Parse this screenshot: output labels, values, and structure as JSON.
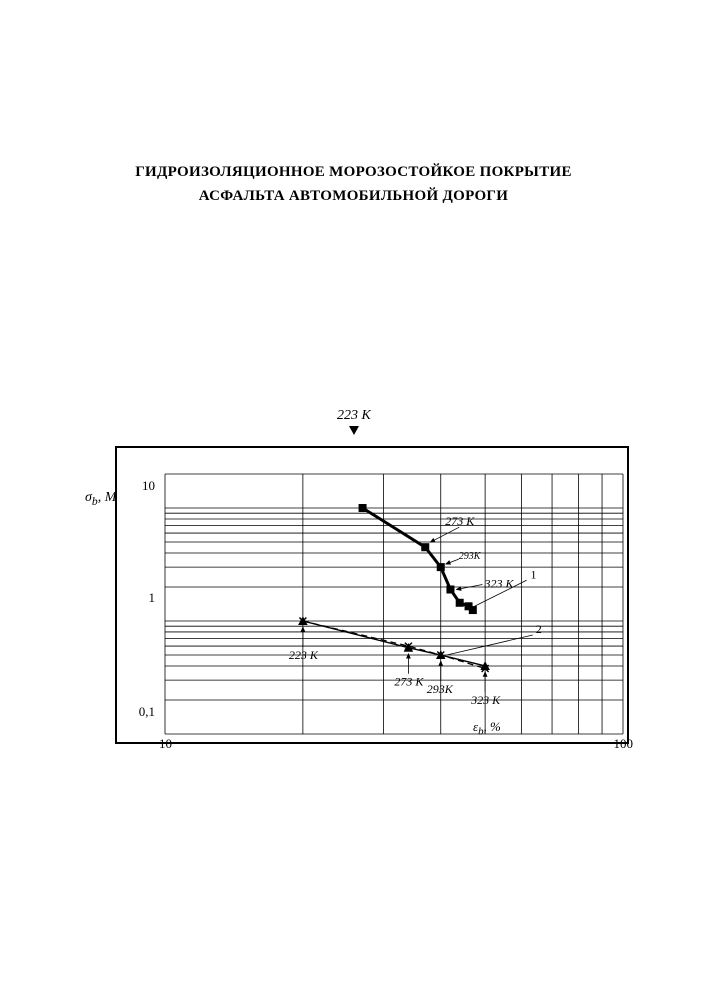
{
  "title": {
    "line1": "ГИДРОИЗОЛЯЦИОННОЕ МОРОЗОСТОЙКОЕ ПОКРЫТИЕ",
    "line2": "АСФАЛЬТА АВТОМОБИЛЬНОЙ ДОРОГИ"
  },
  "chart": {
    "type": "scatter-line-loglog",
    "background_color": "#ffffff",
    "border_color": "#000000",
    "grid_color": "#000000",
    "y_axis": {
      "label": "σ_b, МПа",
      "scale": "log",
      "min": 0.1,
      "max": 20,
      "ticks": [
        0.1,
        1,
        10
      ],
      "tick_labels": [
        "0,1",
        "1",
        "10"
      ]
    },
    "x_axis": {
      "label": "ε_b, %",
      "scale": "log",
      "min": 10,
      "max": 100,
      "ticks": [
        10,
        100
      ],
      "tick_labels": [
        "10",
        "100"
      ]
    },
    "series": [
      {
        "id": "1",
        "marker": "square",
        "marker_size": 8,
        "line_style": "solid",
        "line_width": 3,
        "color": "#000000",
        "points": [
          {
            "x": 27,
            "y": 10,
            "t": "223 K"
          },
          {
            "x": 37,
            "y": 4.5,
            "t": "273 K"
          },
          {
            "x": 40,
            "y": 3.0,
            "t": "293K"
          },
          {
            "x": 42,
            "y": 1.9,
            "t": "323 K"
          },
          {
            "x": 44,
            "y": 1.45
          },
          {
            "x": 46,
            "y": 1.35
          },
          {
            "x": 47,
            "y": 1.25
          }
        ]
      },
      {
        "id": "2",
        "marker": "triangle",
        "marker_size": 8,
        "line_style": "solid",
        "line_width": 1.4,
        "color": "#000000",
        "points": [
          {
            "x": 20,
            "y": 1.0,
            "t": "223 K"
          },
          {
            "x": 34,
            "y": 0.58,
            "t": "273 K"
          },
          {
            "x": 40,
            "y": 0.5,
            "t": "293K"
          },
          {
            "x": 50,
            "y": 0.4,
            "t": "323 K"
          }
        ]
      },
      {
        "id": "3",
        "marker": "x",
        "marker_size": 7,
        "line_style": "dashed",
        "line_width": 1.2,
        "color": "#000000",
        "points": [
          {
            "x": 20,
            "y": 1.0
          },
          {
            "x": 34,
            "y": 0.6
          },
          {
            "x": 40,
            "y": 0.5
          },
          {
            "x": 50,
            "y": 0.38
          }
        ]
      }
    ],
    "top_annotation": "223 K",
    "curve_labels": [
      "1",
      "2"
    ]
  }
}
